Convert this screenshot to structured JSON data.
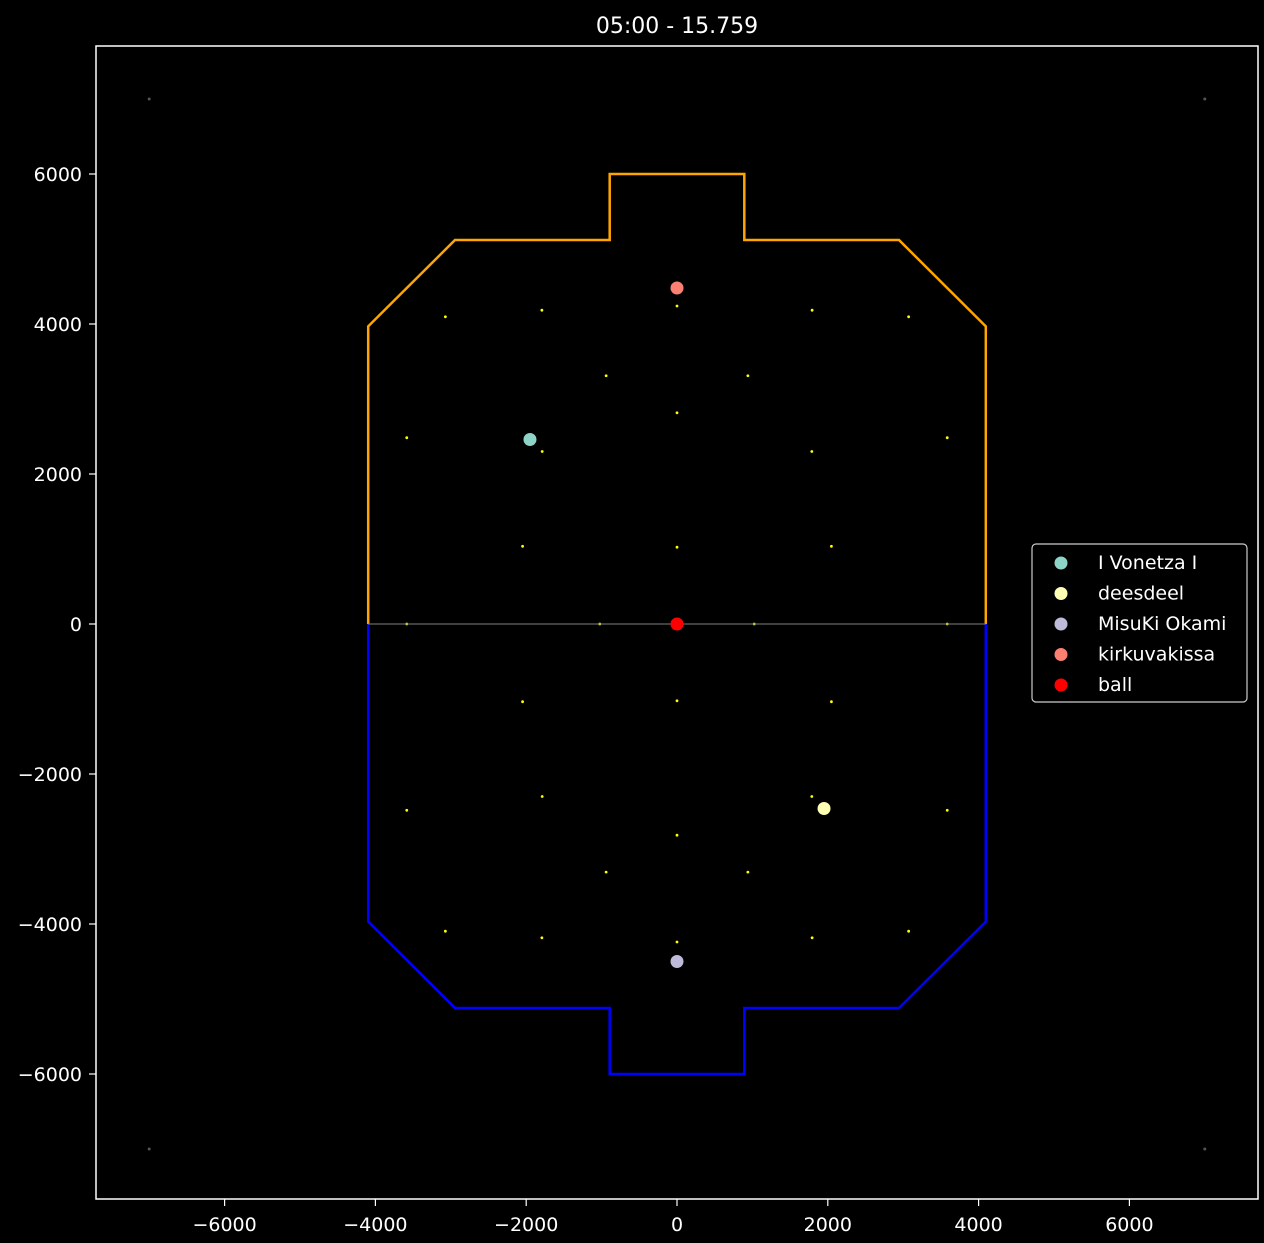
{
  "chart_data": {
    "type": "scatter",
    "title": "05:00 - 15.759",
    "xlabel": "",
    "ylabel": "",
    "xlim": [
      -7700,
      7700
    ],
    "ylim": [
      -7700,
      7700
    ],
    "xticks": [
      -6000,
      -4000,
      -2000,
      0,
      2000,
      4000,
      6000
    ],
    "yticks": [
      6000,
      4000,
      2000,
      0,
      -2000,
      -4000,
      -6000
    ],
    "xtick_labels": [
      "−6000",
      "−4000",
      "−2000",
      "0",
      "2000",
      "4000",
      "6000"
    ],
    "ytick_labels": [
      "6000",
      "4000",
      "2000",
      "0",
      "−2000",
      "−4000",
      "−6000"
    ],
    "grid": false,
    "legend_position": "center-right",
    "series": [
      {
        "name": "I Vonetza I",
        "color": "#8dd3c7",
        "x": -1950,
        "y": 2460
      },
      {
        "name": "deesdeel",
        "color": "#ffffb3",
        "x": 1950,
        "y": -2460
      },
      {
        "name": "MisuKi Okami",
        "color": "#bebada",
        "x": 0,
        "y": -4500
      },
      {
        "name": "kirkuvakissa",
        "color": "#fb8072",
        "x": 0,
        "y": 4480
      },
      {
        "name": "ball",
        "color": "#ff0000",
        "x": 0,
        "y": 0
      }
    ],
    "boost_pads": [
      [
        -3584,
        0
      ],
      [
        3584,
        0
      ],
      [
        -1024,
        0
      ],
      [
        1024,
        0
      ],
      [
        -3072,
        4096
      ],
      [
        3072,
        4096
      ],
      [
        -3072,
        -4096
      ],
      [
        3072,
        -4096
      ],
      [
        -1792,
        4184
      ],
      [
        1792,
        4184
      ],
      [
        -1792,
        -4184
      ],
      [
        1792,
        -4184
      ],
      [
        0,
        4240
      ],
      [
        0,
        -4240
      ],
      [
        -940,
        3310
      ],
      [
        940,
        3310
      ],
      [
        -940,
        -3308
      ],
      [
        940,
        -3308
      ],
      [
        0,
        2816
      ],
      [
        0,
        -2816
      ],
      [
        -3584,
        2484
      ],
      [
        3584,
        2484
      ],
      [
        -3584,
        -2484
      ],
      [
        3584,
        -2484
      ],
      [
        -1788,
        2300
      ],
      [
        1788,
        2300
      ],
      [
        -1788,
        -2300
      ],
      [
        1788,
        -2300
      ],
      [
        -2048,
        1036
      ],
      [
        2048,
        1036
      ],
      [
        -2048,
        -1036
      ],
      [
        2048,
        -1036
      ],
      [
        0,
        1024
      ],
      [
        0,
        -1024
      ]
    ],
    "corner_markers": [
      [
        -7000,
        7000
      ],
      [
        7000,
        7000
      ],
      [
        -7000,
        -7000
      ],
      [
        7000,
        -7000
      ]
    ],
    "orange_half": [
      [
        -4096,
        0
      ],
      [
        -4096,
        3968
      ],
      [
        -2944,
        5120
      ],
      [
        -893,
        5120
      ],
      [
        -893,
        6000
      ],
      [
        893,
        6000
      ],
      [
        893,
        5120
      ],
      [
        2944,
        5120
      ],
      [
        4096,
        3968
      ],
      [
        4096,
        0
      ]
    ],
    "blue_half": [
      [
        -4096,
        0
      ],
      [
        -4096,
        -3968
      ],
      [
        -2944,
        -5120
      ],
      [
        -893,
        -5120
      ],
      [
        -893,
        -6000
      ],
      [
        893,
        -6000
      ],
      [
        893,
        -5120
      ],
      [
        2944,
        -5120
      ],
      [
        4096,
        -3968
      ],
      [
        4096,
        0
      ]
    ],
    "midline": [
      [
        -4096,
        0
      ],
      [
        4096,
        0
      ]
    ],
    "colors": {
      "orange": "#ffa500",
      "blue": "#0000ff",
      "boost": "#ffff00",
      "midline": "#808080",
      "background": "#000000",
      "axes": "#ffffff"
    }
  }
}
